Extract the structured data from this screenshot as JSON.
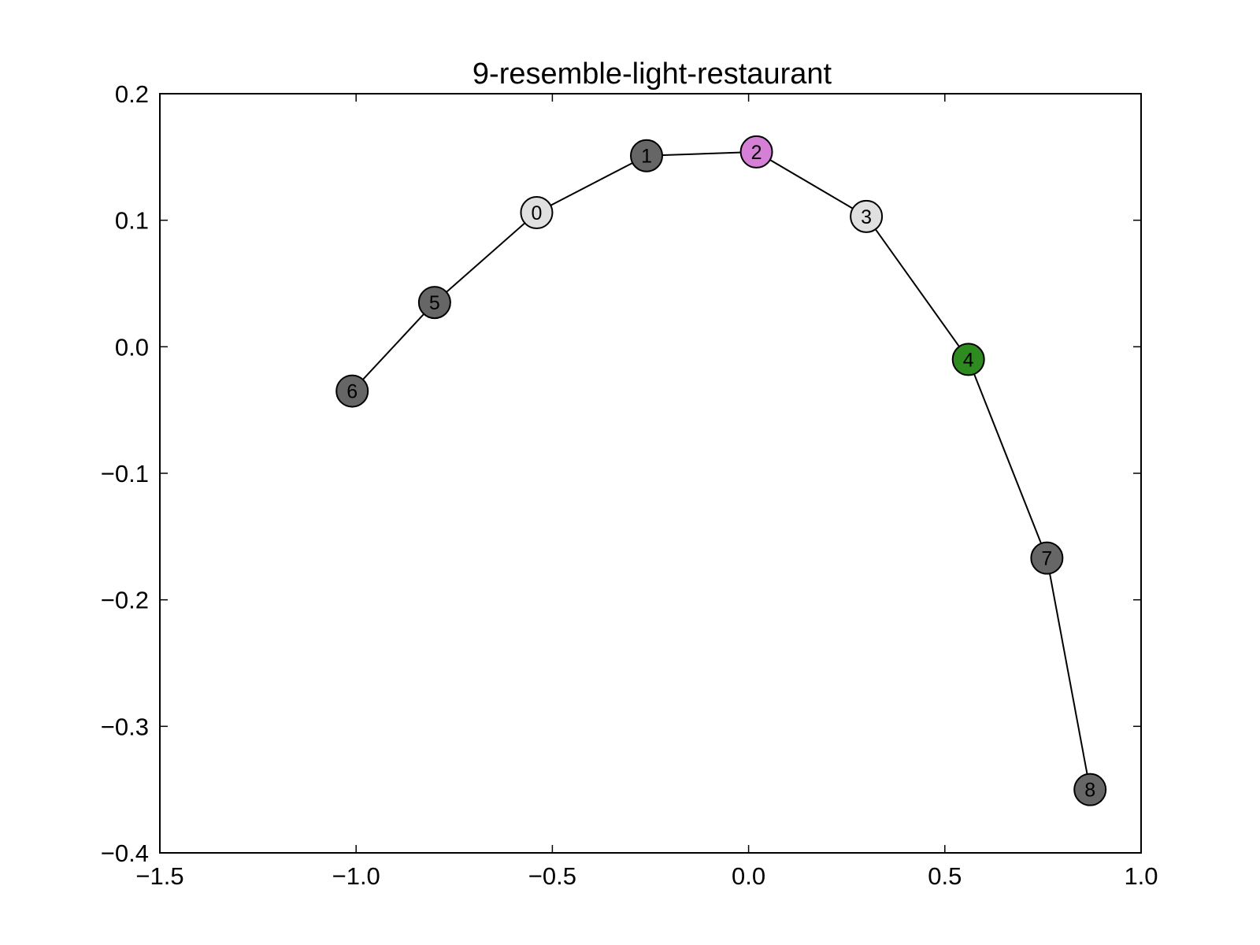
{
  "chart_data": {
    "type": "scatter",
    "title": "9-resemble-light-restaurant",
    "xlabel": "",
    "ylabel": "",
    "xlim": [
      -1.5,
      1.0
    ],
    "ylim": [
      -0.4,
      0.2
    ],
    "x_ticks": [
      -1.5,
      -1.0,
      -0.5,
      0.0,
      0.5,
      1.0
    ],
    "y_ticks": [
      -0.4,
      -0.3,
      -0.2,
      -0.1,
      0.0,
      0.1,
      0.2
    ],
    "x_tick_labels": [
      "−1.5",
      "−1.0",
      "−0.5",
      "0.0",
      "0.5",
      "1.0"
    ],
    "y_tick_labels": [
      "−0.4",
      "−0.3",
      "−0.2",
      "−0.1",
      "0.0",
      "0.1",
      "0.2"
    ],
    "grid": false,
    "nodes": [
      {
        "label": "0",
        "x": -0.54,
        "y": 0.106,
        "color": "#e0e0e0"
      },
      {
        "label": "1",
        "x": -0.26,
        "y": 0.151,
        "color": "#666666"
      },
      {
        "label": "2",
        "x": 0.02,
        "y": 0.154,
        "color": "#d67fd6"
      },
      {
        "label": "3",
        "x": 0.3,
        "y": 0.103,
        "color": "#e0e0e0"
      },
      {
        "label": "4",
        "x": 0.56,
        "y": -0.01,
        "color": "#2e8b1f"
      },
      {
        "label": "5",
        "x": -0.8,
        "y": 0.035,
        "color": "#666666"
      },
      {
        "label": "6",
        "x": -1.01,
        "y": -0.035,
        "color": "#666666"
      },
      {
        "label": "7",
        "x": 0.76,
        "y": -0.167,
        "color": "#666666"
      },
      {
        "label": "8",
        "x": 0.87,
        "y": -0.35,
        "color": "#666666"
      }
    ],
    "edges": [
      [
        "6",
        "5"
      ],
      [
        "5",
        "0"
      ],
      [
        "0",
        "1"
      ],
      [
        "1",
        "2"
      ],
      [
        "2",
        "3"
      ],
      [
        "3",
        "4"
      ],
      [
        "4",
        "7"
      ],
      [
        "7",
        "8"
      ]
    ]
  }
}
